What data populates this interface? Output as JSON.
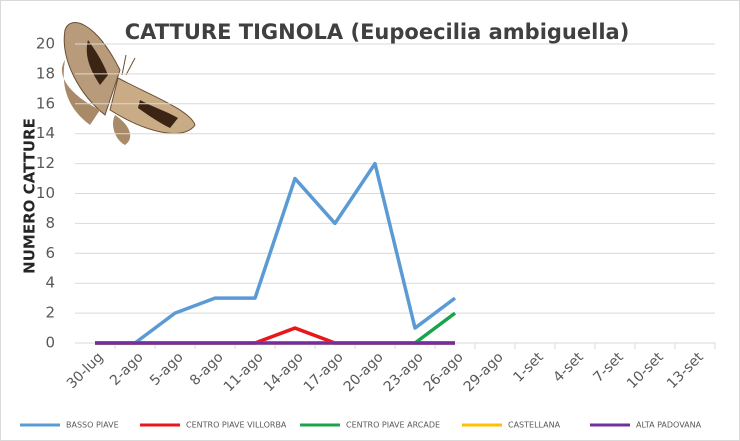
{
  "chart_data": {
    "type": "line",
    "title": "CATTURE TIGNOLA (Eupoecilia ambiguella)",
    "y_label": "NUMERO CATTURE",
    "categories": [
      "30-lug",
      "2-ago",
      "5-ago",
      "8-ago",
      "11-ago",
      "14-ago",
      "17-ago",
      "20-ago",
      "23-ago",
      "26-ago",
      "29-ago",
      "1-set",
      "4-set",
      "7-set",
      "10-set",
      "13-set"
    ],
    "series": [
      {
        "name": "BASSO PIAVE",
        "color": "#5b9bd5",
        "values": [
          0,
          0,
          2,
          3,
          3,
          11,
          8,
          12,
          1,
          3,
          null,
          null,
          null,
          null,
          null,
          null
        ]
      },
      {
        "name": "CENTRO PIAVE VILLORBA",
        "color": "#e8171d",
        "values": [
          0,
          0,
          0,
          0,
          0,
          1,
          0,
          0,
          0,
          0,
          null,
          null,
          null,
          null,
          null,
          null
        ]
      },
      {
        "name": "CENTRO PIAVE ARCADE",
        "color": "#18a54a",
        "values": [
          null,
          null,
          null,
          null,
          null,
          null,
          null,
          null,
          0,
          2,
          null,
          null,
          null,
          null,
          null,
          null
        ]
      },
      {
        "name": "CASTELLANA",
        "color": "#ffc000",
        "values": [
          0,
          0,
          0,
          0,
          0,
          0,
          0,
          0,
          0,
          0,
          null,
          null,
          null,
          null,
          null,
          null
        ]
      },
      {
        "name": "ALTA PADOVANA",
        "color": "#7030a0",
        "values": [
          0,
          0,
          0,
          0,
          0,
          0,
          0,
          0,
          0,
          0,
          null,
          null,
          null,
          null,
          null,
          null
        ]
      }
    ],
    "ylim": [
      0,
      20
    ],
    "yticks": [
      0,
      2,
      4,
      6,
      8,
      10,
      12,
      14,
      16,
      18,
      20
    ],
    "grid": true,
    "legend": "bottom"
  }
}
